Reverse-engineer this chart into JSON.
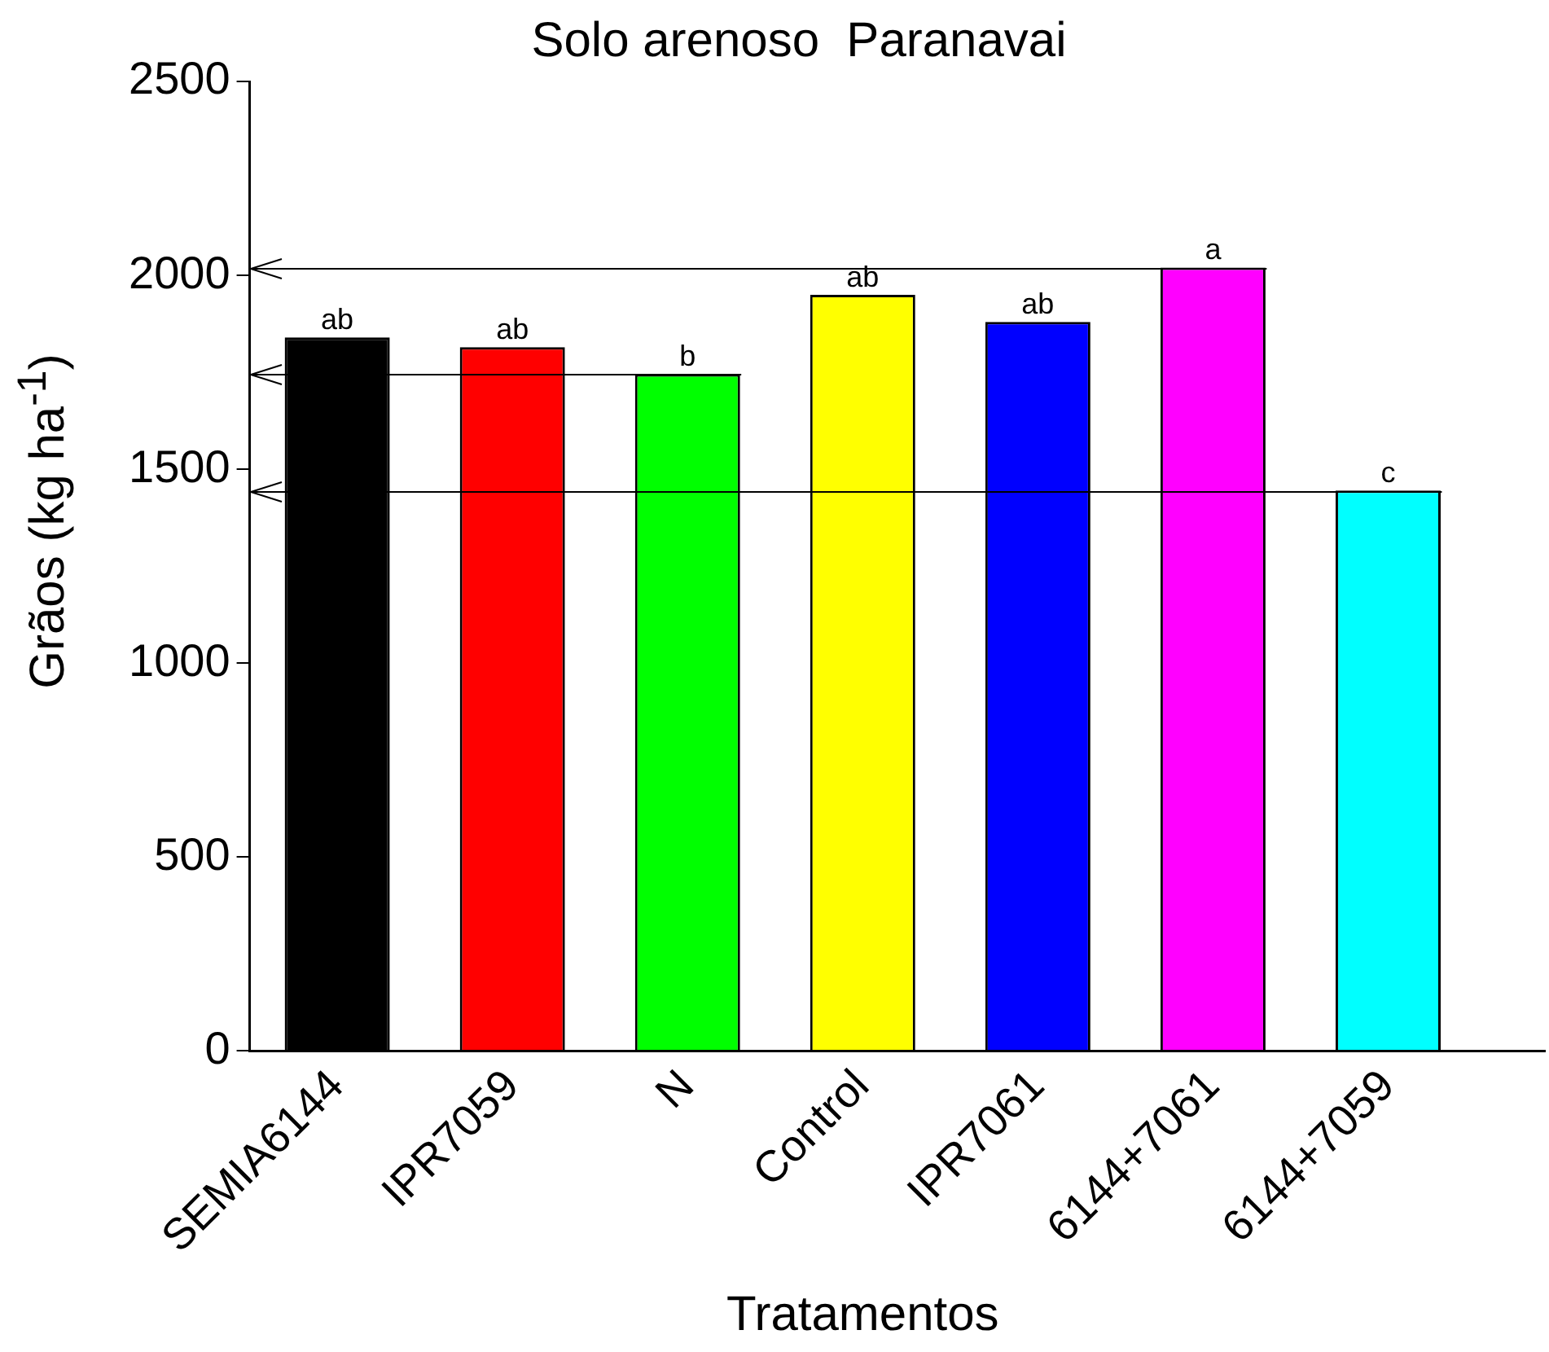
{
  "chart_data": {
    "type": "bar",
    "title": "Solo arenoso  Paranavai",
    "xlabel": "Tratamentos",
    "ylabel": "Grãos (kg ha$^{-1}$)",
    "categories": [
      "SEMIA6144",
      "IPR7059",
      "N",
      "Control",
      "IPR7061",
      "6144+7061",
      "6144+7059"
    ],
    "values": [
      1840,
      1815,
      1745,
      1950,
      1880,
      2020,
      1445
    ],
    "colors": [
      "#000000",
      "#ff0000",
      "#00ff00",
      "#ffff00",
      "#0000ff",
      "#ff00ff",
      "#00ffff"
    ],
    "value_labels": [
      "ab",
      "ab",
      "b",
      "ab",
      "ab",
      "a",
      "c"
    ],
    "ylim": [
      0,
      2500
    ],
    "yticks": [
      0,
      500,
      1000,
      1500,
      2000,
      2500
    ],
    "grid": false,
    "legend": false,
    "ref_lines": [
      {
        "axis": "y",
        "value": 2015,
        "color": "#000000"
      },
      {
        "axis": "y",
        "value": 1745,
        "color": "#000000"
      },
      {
        "axis": "y",
        "value": 1442,
        "color": "#000000"
      }
    ]
  }
}
